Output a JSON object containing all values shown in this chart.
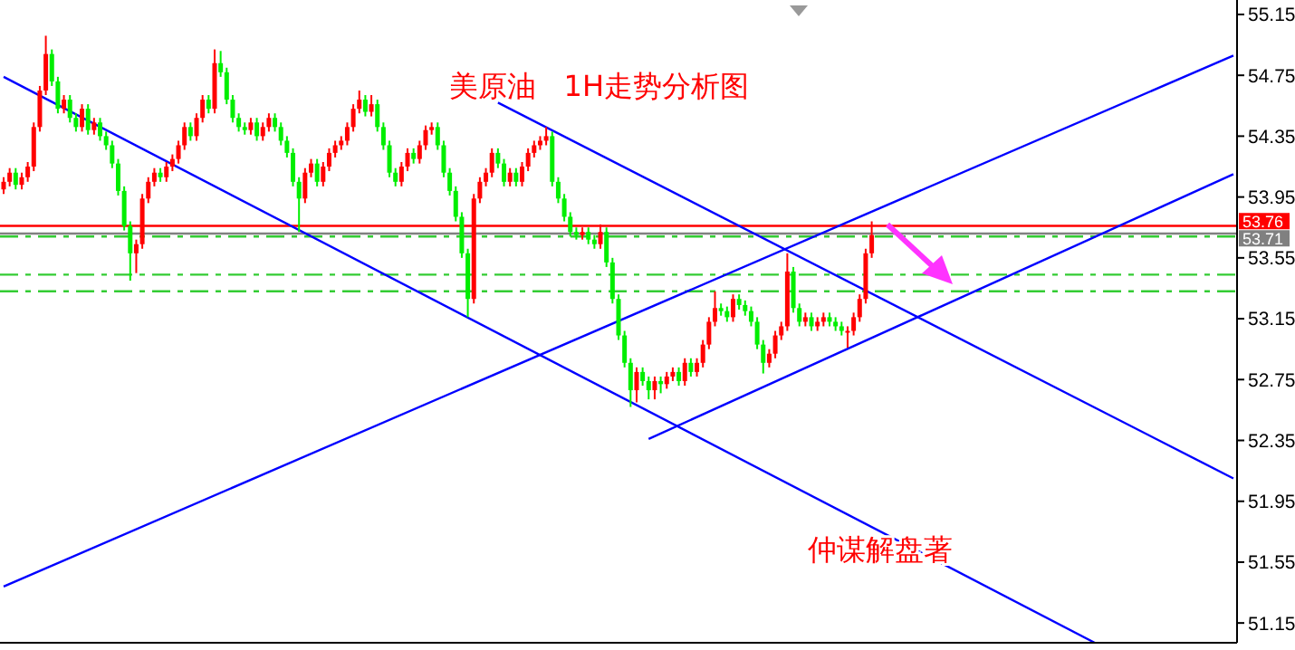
{
  "chart_data": {
    "type": "candlestick",
    "title": "美原油   1H走势分析图",
    "annotations": [
      "仲谋解盘著"
    ],
    "categories": [
      null,
      null,
      null,
      null,
      null,
      null,
      null,
      null,
      null,
      null,
      null,
      null,
      null,
      null,
      null,
      null,
      null,
      null,
      null,
      null,
      null,
      null,
      null,
      null,
      null,
      null,
      null,
      null,
      null,
      null,
      null,
      null,
      null,
      null,
      null,
      null,
      null,
      null,
      null,
      null,
      null,
      null,
      null,
      null,
      null,
      null,
      null,
      null,
      null,
      null,
      null,
      null,
      null,
      null,
      null,
      null,
      null,
      null,
      null,
      null,
      null,
      null,
      null,
      null,
      null,
      null,
      null,
      null,
      null,
      null,
      null,
      null,
      null,
      null,
      null,
      null,
      null,
      null,
      null,
      null,
      null,
      null,
      null,
      null,
      null,
      null,
      null,
      null,
      null,
      null,
      null,
      null,
      null,
      null,
      null,
      null,
      null,
      null,
      null,
      null,
      null,
      null,
      null,
      null,
      null,
      null,
      null,
      null,
      null,
      null,
      null,
      null,
      null,
      null,
      null,
      null,
      null,
      null,
      null,
      null,
      null,
      null,
      null,
      null,
      null,
      null,
      null,
      null,
      null,
      null,
      null,
      null,
      null,
      null,
      null,
      null,
      null,
      null,
      null,
      null,
      null,
      null,
      null,
      null,
      null,
      null,
      null,
      null,
      null,
      null,
      null,
      null,
      null,
      null,
      null,
      null,
      null,
      null,
      null,
      null,
      null,
      null,
      null,
      null,
      null,
      null,
      null,
      null,
      null,
      null,
      null,
      null,
      null,
      null,
      null,
      null,
      null,
      null,
      null,
      null,
      null,
      null,
      null,
      null,
      null,
      null,
      null,
      null,
      null,
      null,
      null,
      null,
      null,
      null,
      null,
      null,
      null,
      null,
      null,
      null,
      null,
      null,
      null,
      null,
      null
    ],
    "ohlc": [
      [
        54.0,
        54.08,
        53.97,
        54.05
      ],
      [
        54.05,
        54.14,
        54.02,
        54.11
      ],
      [
        54.11,
        54.14,
        54.0,
        54.03
      ],
      [
        54.03,
        54.11,
        54.0,
        54.08
      ],
      [
        54.08,
        54.18,
        54.05,
        54.15
      ],
      [
        54.15,
        54.44,
        54.12,
        54.41
      ],
      [
        54.41,
        54.68,
        54.38,
        54.65
      ],
      [
        54.65,
        55.01,
        54.62,
        54.89
      ],
      [
        54.89,
        54.92,
        54.68,
        54.71
      ],
      [
        54.71,
        54.74,
        54.5,
        54.53
      ],
      [
        54.53,
        54.62,
        54.5,
        54.59
      ],
      [
        54.59,
        54.62,
        54.44,
        54.47
      ],
      [
        54.47,
        54.5,
        54.38,
        54.41
      ],
      [
        54.41,
        54.56,
        54.38,
        54.53
      ],
      [
        54.53,
        54.56,
        54.36,
        54.39
      ],
      [
        54.39,
        54.47,
        54.36,
        54.44
      ],
      [
        54.44,
        54.47,
        54.32,
        54.35
      ],
      [
        54.35,
        54.38,
        54.26,
        54.29
      ],
      [
        54.29,
        54.32,
        54.14,
        54.17
      ],
      [
        54.17,
        54.2,
        53.96,
        53.99
      ],
      [
        53.99,
        54.02,
        53.73,
        53.76
      ],
      [
        53.76,
        53.79,
        53.4,
        53.58
      ],
      [
        53.58,
        53.67,
        53.45,
        53.64
      ],
      [
        53.64,
        53.97,
        53.61,
        53.94
      ],
      [
        53.94,
        54.08,
        53.91,
        54.05
      ],
      [
        54.05,
        54.14,
        54.02,
        54.11
      ],
      [
        54.11,
        54.14,
        54.05,
        54.08
      ],
      [
        54.08,
        54.18,
        54.05,
        54.15
      ],
      [
        54.15,
        54.23,
        54.12,
        54.2
      ],
      [
        54.2,
        54.32,
        54.17,
        54.29
      ],
      [
        54.29,
        54.44,
        54.26,
        54.41
      ],
      [
        54.41,
        54.44,
        54.32,
        54.35
      ],
      [
        54.35,
        54.5,
        54.32,
        54.47
      ],
      [
        54.47,
        54.62,
        54.44,
        54.59
      ],
      [
        54.59,
        54.62,
        54.5,
        54.53
      ],
      [
        54.53,
        54.92,
        54.5,
        54.83
      ],
      [
        54.83,
        54.91,
        54.74,
        54.77
      ],
      [
        54.77,
        54.8,
        54.56,
        54.59
      ],
      [
        54.59,
        54.62,
        54.44,
        54.47
      ],
      [
        54.47,
        54.5,
        54.38,
        54.41
      ],
      [
        54.41,
        54.44,
        54.36,
        54.39
      ],
      [
        54.39,
        54.47,
        54.36,
        54.44
      ],
      [
        54.44,
        54.47,
        54.32,
        54.35
      ],
      [
        54.35,
        54.44,
        54.32,
        54.41
      ],
      [
        54.41,
        54.5,
        54.38,
        54.47
      ],
      [
        54.47,
        54.5,
        54.38,
        54.41
      ],
      [
        54.41,
        54.44,
        54.29,
        54.32
      ],
      [
        54.32,
        54.35,
        54.21,
        54.24
      ],
      [
        54.24,
        54.27,
        54.02,
        54.05
      ],
      [
        54.05,
        54.08,
        53.72,
        53.94
      ],
      [
        53.94,
        54.14,
        53.91,
        54.11
      ],
      [
        54.11,
        54.2,
        54.08,
        54.17
      ],
      [
        54.17,
        54.2,
        54.02,
        54.05
      ],
      [
        54.05,
        54.18,
        54.02,
        54.15
      ],
      [
        54.15,
        54.27,
        54.12,
        54.24
      ],
      [
        54.24,
        54.32,
        54.21,
        54.29
      ],
      [
        54.29,
        54.35,
        54.26,
        54.32
      ],
      [
        54.32,
        54.44,
        54.29,
        54.41
      ],
      [
        54.41,
        54.56,
        54.38,
        54.53
      ],
      [
        54.53,
        54.65,
        54.5,
        54.59
      ],
      [
        54.59,
        54.62,
        54.48,
        54.51
      ],
      [
        54.51,
        54.62,
        54.48,
        54.56
      ],
      [
        54.56,
        54.59,
        54.38,
        54.41
      ],
      [
        54.41,
        54.44,
        54.26,
        54.29
      ],
      [
        54.29,
        54.32,
        54.08,
        54.11
      ],
      [
        54.11,
        54.14,
        54.02,
        54.05
      ],
      [
        54.05,
        54.18,
        54.02,
        54.15
      ],
      [
        54.15,
        54.27,
        54.12,
        54.24
      ],
      [
        54.24,
        54.27,
        54.17,
        54.2
      ],
      [
        54.2,
        54.32,
        54.17,
        54.29
      ],
      [
        54.29,
        54.42,
        54.26,
        54.39
      ],
      [
        54.39,
        54.44,
        54.36,
        54.41
      ],
      [
        54.41,
        54.44,
        54.26,
        54.29
      ],
      [
        54.29,
        54.32,
        54.08,
        54.11
      ],
      [
        54.11,
        54.14,
        53.96,
        53.99
      ],
      [
        53.99,
        54.02,
        53.79,
        53.82
      ],
      [
        53.82,
        53.85,
        53.55,
        53.58
      ],
      [
        53.58,
        53.61,
        53.16,
        53.28
      ],
      [
        53.28,
        53.97,
        53.25,
        53.94
      ],
      [
        53.94,
        54.08,
        53.91,
        54.05
      ],
      [
        54.05,
        54.14,
        54.02,
        54.11
      ],
      [
        54.11,
        54.27,
        54.08,
        54.24
      ],
      [
        54.24,
        54.27,
        54.14,
        54.17
      ],
      [
        54.17,
        54.2,
        54.02,
        54.05
      ],
      [
        54.05,
        54.14,
        54.02,
        54.11
      ],
      [
        54.11,
        54.14,
        54.02,
        54.05
      ],
      [
        54.05,
        54.18,
        54.02,
        54.15
      ],
      [
        54.15,
        54.27,
        54.12,
        54.24
      ],
      [
        54.24,
        54.32,
        54.21,
        54.29
      ],
      [
        54.29,
        54.35,
        54.26,
        54.32
      ],
      [
        54.32,
        54.41,
        54.29,
        54.35
      ],
      [
        54.35,
        54.38,
        54.02,
        54.05
      ],
      [
        54.05,
        54.08,
        53.91,
        53.94
      ],
      [
        53.94,
        53.97,
        53.79,
        53.82
      ],
      [
        53.82,
        53.85,
        53.69,
        53.72
      ],
      [
        53.72,
        53.75,
        53.67,
        53.7
      ],
      [
        53.7,
        53.75,
        53.67,
        53.72
      ],
      [
        53.72,
        53.75,
        53.64,
        53.67
      ],
      [
        53.67,
        53.7,
        53.61,
        53.64
      ],
      [
        53.64,
        53.77,
        53.61,
        53.72
      ],
      [
        53.72,
        53.75,
        53.49,
        53.52
      ],
      [
        53.52,
        53.55,
        53.25,
        53.28
      ],
      [
        53.28,
        53.31,
        53.01,
        53.04
      ],
      [
        53.04,
        53.07,
        52.83,
        52.86
      ],
      [
        52.86,
        52.89,
        52.57,
        52.68
      ],
      [
        52.68,
        52.83,
        52.6,
        52.8
      ],
      [
        52.8,
        52.83,
        52.71,
        52.74
      ],
      [
        52.74,
        52.77,
        52.62,
        52.68
      ],
      [
        52.68,
        52.77,
        52.62,
        52.74
      ],
      [
        52.74,
        52.77,
        52.66,
        52.72
      ],
      [
        52.72,
        52.8,
        52.69,
        52.77
      ],
      [
        52.77,
        52.83,
        52.74,
        52.8
      ],
      [
        52.8,
        52.83,
        52.71,
        52.74
      ],
      [
        52.74,
        52.89,
        52.71,
        52.86
      ],
      [
        52.86,
        52.89,
        52.77,
        52.8
      ],
      [
        52.8,
        52.89,
        52.77,
        52.86
      ],
      [
        52.86,
        53.01,
        52.83,
        52.98
      ],
      [
        52.98,
        53.16,
        52.95,
        53.13
      ],
      [
        53.13,
        53.33,
        53.1,
        53.22
      ],
      [
        53.22,
        53.25,
        53.17,
        53.2
      ],
      [
        53.2,
        53.23,
        53.13,
        53.16
      ],
      [
        53.16,
        53.31,
        53.13,
        53.28
      ],
      [
        53.28,
        53.31,
        53.21,
        53.24
      ],
      [
        53.24,
        53.27,
        53.17,
        53.2
      ],
      [
        53.2,
        53.23,
        53.1,
        53.13
      ],
      [
        53.13,
        53.16,
        52.95,
        52.98
      ],
      [
        52.98,
        53.01,
        52.79,
        52.86
      ],
      [
        52.86,
        52.95,
        52.83,
        52.92
      ],
      [
        52.92,
        53.07,
        52.89,
        53.04
      ],
      [
        53.04,
        53.13,
        53.01,
        53.1
      ],
      [
        53.1,
        53.58,
        53.07,
        53.46
      ],
      [
        53.46,
        53.49,
        53.19,
        53.22
      ],
      [
        53.22,
        53.25,
        53.1,
        53.13
      ],
      [
        53.13,
        53.19,
        53.1,
        53.16
      ],
      [
        53.16,
        53.19,
        53.07,
        53.1
      ],
      [
        53.1,
        53.16,
        53.07,
        53.13
      ],
      [
        53.13,
        53.19,
        53.1,
        53.16
      ],
      [
        53.16,
        53.19,
        53.1,
        53.13
      ],
      [
        53.13,
        53.16,
        53.07,
        53.1
      ],
      [
        53.1,
        53.13,
        53.04,
        53.07
      ],
      [
        53.07,
        53.1,
        52.96,
        53.07
      ],
      [
        53.07,
        53.19,
        53.04,
        53.16
      ],
      [
        53.16,
        53.31,
        53.13,
        53.28
      ],
      [
        53.28,
        53.61,
        53.25,
        53.58
      ],
      [
        53.58,
        53.79,
        53.55,
        53.7
      ],
      null,
      null,
      null,
      null,
      null,
      null,
      null,
      null,
      null,
      null,
      null,
      null,
      null,
      null,
      null,
      null,
      null,
      null,
      null,
      null,
      null,
      null,
      null,
      null,
      null,
      null,
      null,
      null,
      null,
      null,
      null,
      null,
      null,
      null,
      null,
      null,
      null,
      null,
      null,
      null,
      null,
      null,
      null,
      null,
      null,
      null,
      null,
      null,
      null,
      null,
      null,
      null,
      null,
      null,
      null,
      null,
      null,
      null,
      null,
      null
    ],
    "colors": [
      "#ff0000",
      "#ff0000",
      "#00ee00",
      "#ff0000",
      "#ff0000",
      "#ff0000",
      "#ff0000",
      "#ff0000",
      "#00ee00",
      "#00ee00",
      "#ff0000",
      "#00ee00",
      "#00ee00",
      "#ff0000",
      "#00ee00",
      "#ff0000",
      "#00ee00",
      "#00ee00",
      "#00ee00",
      "#00ee00",
      "#00ee00",
      "#00ee00",
      "#ff0000",
      "#ff0000",
      "#ff0000",
      "#ff0000",
      "#00ee00",
      "#ff0000",
      "#ff0000",
      "#ff0000",
      "#ff0000",
      "#00ee00",
      "#ff0000",
      "#ff0000",
      "#00ee00",
      "#ff0000",
      "#00ee00",
      "#00ee00",
      "#00ee00",
      "#00ee00",
      "#00ee00",
      "#ff0000",
      "#00ee00",
      "#ff0000",
      "#ff0000",
      "#00ee00",
      "#00ee00",
      "#00ee00",
      "#00ee00",
      "#00ee00",
      "#ff0000",
      "#ff0000",
      "#00ee00",
      "#ff0000",
      "#ff0000",
      "#ff0000",
      "#ff0000",
      "#ff0000",
      "#ff0000",
      "#ff0000",
      "#00ee00",
      "#ff0000",
      "#00ee00",
      "#00ee00",
      "#00ee00",
      "#00ee00",
      "#ff0000",
      "#ff0000",
      "#00ee00",
      "#ff0000",
      "#ff0000",
      "#ff0000",
      "#00ee00",
      "#00ee00",
      "#00ee00",
      "#00ee00",
      "#00ee00",
      "#00ee00",
      "#ff0000",
      "#ff0000",
      "#ff0000",
      "#ff0000",
      "#00ee00",
      "#00ee00",
      "#ff0000",
      "#00ee00",
      "#ff0000",
      "#ff0000",
      "#ff0000",
      "#ff0000",
      "#ff0000",
      "#00ee00",
      "#00ee00",
      "#00ee00",
      "#00ee00",
      "#00ee00",
      "#ff0000",
      "#00ee00",
      "#00ee00",
      "#ff0000",
      "#00ee00",
      "#00ee00",
      "#00ee00",
      "#00ee00",
      "#00ee00",
      "#ff0000",
      "#00ee00",
      "#00ee00",
      "#ff0000",
      "#00ee00",
      "#ff0000",
      "#ff0000",
      "#00ee00",
      "#ff0000",
      "#00ee00",
      "#ff0000",
      "#ff0000",
      "#ff0000",
      "#ff0000",
      "#00ee00",
      "#00ee00",
      "#ff0000",
      "#00ee00",
      "#00ee00",
      "#00ee00",
      "#00ee00",
      "#00ee00",
      "#ff0000",
      "#ff0000",
      "#ff0000",
      "#ff0000",
      "#00ee00",
      "#00ee00",
      "#ff0000",
      "#00ee00",
      "#ff0000",
      "#ff0000",
      "#00ee00",
      "#00ee00",
      "#00ee00",
      "#ff0000",
      "#ff0000",
      "#ff0000",
      "#ff0000",
      "#ff0000",
      null,
      null,
      null,
      null,
      null,
      null,
      null,
      null,
      null,
      null,
      null,
      null,
      null,
      null,
      null,
      null,
      null,
      null,
      null,
      null,
      null,
      null,
      null,
      null,
      null,
      null,
      null,
      null,
      null,
      null,
      null,
      null,
      null,
      null,
      null,
      null,
      null,
      null,
      null,
      null,
      null,
      null,
      null,
      null,
      null,
      null,
      null,
      null,
      null,
      null,
      null,
      null,
      null,
      null,
      null,
      null,
      null,
      null,
      null,
      null
    ],
    "series": [
      {
        "type": "line",
        "color": "#0000ff",
        "values": [
          54.74,
          null,
          null,
          null,
          null,
          null,
          null,
          null,
          null,
          null,
          null,
          null,
          null,
          null,
          null,
          null,
          null,
          null,
          null,
          null,
          null,
          null,
          null,
          null,
          null,
          null,
          null,
          null,
          null,
          null,
          null,
          null,
          null,
          null,
          null,
          null,
          null,
          null,
          null,
          null,
          null,
          null,
          null,
          null,
          null,
          null,
          null,
          null,
          null,
          null,
          null,
          null,
          null,
          null,
          null,
          null,
          null,
          null,
          null,
          null,
          null,
          null,
          null,
          null,
          null,
          null,
          null,
          null,
          null,
          null,
          null,
          null,
          null,
          null,
          null,
          null,
          null,
          null,
          null,
          null,
          null,
          null,
          null,
          null,
          null,
          null,
          null,
          null,
          null,
          null,
          null,
          null,
          null,
          null,
          null,
          null,
          null,
          null,
          null,
          null,
          null,
          null,
          null,
          null,
          null,
          null,
          null,
          null,
          null,
          null,
          null,
          null,
          null,
          null,
          null,
          null,
          null,
          null,
          null,
          null,
          null,
          null,
          null,
          null,
          null,
          null,
          null,
          null,
          null,
          null,
          null,
          null,
          null,
          null,
          null,
          null,
          null,
          null,
          null,
          null,
          null,
          null,
          null,
          null,
          null,
          null,
          null,
          null,
          null,
          null,
          null,
          null,
          null,
          null,
          null,
          null,
          null,
          null,
          null,
          null,
          null,
          null,
          null,
          null,
          null,
          null,
          null,
          null,
          null,
          null,
          null,
          null,
          null,
          null,
          null,
          null,
          null,
          null,
          null,
          null,
          null,
          51.02,
          null,
          null,
          null,
          null,
          null,
          null,
          null,
          null,
          null,
          null,
          null,
          null,
          null,
          null,
          null,
          null,
          null,
          null,
          null,
          null,
          null,
          null,
          null
        ]
      },
      {
        "type": "line",
        "color": "#0000ff",
        "values": [
          null,
          null,
          null,
          null,
          null,
          null,
          null,
          null,
          null,
          null,
          null,
          null,
          null,
          null,
          null,
          null,
          null,
          null,
          null,
          null,
          null,
          null,
          null,
          null,
          null,
          null,
          null,
          null,
          null,
          null,
          null,
          null,
          null,
          null,
          null,
          null,
          null,
          null,
          null,
          null,
          null,
          null,
          null,
          null,
          null,
          null,
          null,
          null,
          null,
          null,
          null,
          null,
          null,
          null,
          null,
          null,
          null,
          null,
          null,
          null,
          null,
          null,
          null,
          null,
          null,
          null,
          null,
          null,
          null,
          null,
          null,
          null,
          null,
          null,
          null,
          null,
          null,
          null,
          null,
          null,
          null,
          null,
          54.57,
          null,
          null,
          null,
          null,
          null,
          null,
          null,
          null,
          null,
          null,
          null,
          null,
          null,
          null,
          null,
          null,
          null,
          null,
          null,
          null,
          null,
          null,
          null,
          null,
          null,
          null,
          null,
          null,
          null,
          null,
          null,
          null,
          null,
          null,
          null,
          null,
          null,
          null,
          null,
          null,
          null,
          null,
          null,
          null,
          null,
          null,
          null,
          null,
          null,
          null,
          null,
          null,
          null,
          null,
          null,
          null,
          null,
          null,
          null,
          null,
          null,
          null,
          null,
          null,
          null,
          null,
          null,
          null,
          null,
          null,
          null,
          null,
          null,
          null,
          null,
          null,
          null,
          null,
          null,
          null,
          null,
          null,
          null,
          null,
          null,
          null,
          null,
          null,
          null,
          null,
          null,
          null,
          null,
          null,
          null,
          null,
          null,
          null,
          null,
          null,
          null,
          null,
          null,
          null,
          null,
          null,
          null,
          null,
          null,
          null,
          null,
          null,
          null,
          null,
          null,
          null,
          null,
          null,
          null,
          null,
          null,
          52.1
        ]
      },
      {
        "type": "line",
        "color": "#0000ff",
        "values": [
          51.39,
          null,
          null,
          null,
          null,
          null,
          null,
          null,
          null,
          null,
          null,
          null,
          null,
          null,
          null,
          null,
          null,
          null,
          null,
          null,
          null,
          null,
          null,
          null,
          null,
          null,
          null,
          null,
          null,
          null,
          null,
          null,
          null,
          null,
          null,
          null,
          null,
          null,
          null,
          null,
          null,
          null,
          null,
          null,
          null,
          null,
          null,
          null,
          null,
          null,
          null,
          null,
          null,
          null,
          null,
          null,
          null,
          null,
          null,
          null,
          null,
          null,
          null,
          null,
          null,
          null,
          null,
          null,
          null,
          null,
          null,
          null,
          null,
          null,
          null,
          null,
          null,
          null,
          null,
          null,
          null,
          null,
          null,
          null,
          null,
          null,
          null,
          null,
          null,
          null,
          null,
          null,
          null,
          null,
          null,
          null,
          null,
          null,
          null,
          null,
          null,
          null,
          null,
          null,
          null,
          null,
          null,
          null,
          null,
          null,
          null,
          null,
          null,
          null,
          null,
          null,
          null,
          null,
          null,
          null,
          null,
          null,
          null,
          null,
          null,
          null,
          null,
          null,
          null,
          null,
          null,
          null,
          null,
          null,
          null,
          null,
          null,
          null,
          null,
          null,
          null,
          null,
          null,
          null,
          null,
          null,
          null,
          null,
          null,
          null,
          null,
          null,
          null,
          null,
          null,
          null,
          null,
          null,
          null,
          null,
          null,
          null,
          null,
          null,
          null,
          null,
          null,
          null,
          null,
          null,
          null,
          null,
          null,
          null,
          null,
          null,
          null,
          null,
          null,
          null,
          null,
          null,
          null,
          null,
          null,
          null,
          null,
          null,
          null,
          null,
          null,
          null,
          null,
          null,
          null,
          null,
          null,
          null,
          null,
          null,
          null,
          null,
          null,
          null,
          54.88
        ]
      },
      {
        "type": "line",
        "color": "#0000ff",
        "values": [
          null,
          null,
          null,
          null,
          null,
          null,
          null,
          null,
          null,
          null,
          null,
          null,
          null,
          null,
          null,
          null,
          null,
          null,
          null,
          null,
          null,
          null,
          null,
          null,
          null,
          null,
          null,
          null,
          null,
          null,
          null,
          null,
          null,
          null,
          null,
          null,
          null,
          null,
          null,
          null,
          null,
          null,
          null,
          null,
          null,
          null,
          null,
          null,
          null,
          null,
          null,
          null,
          null,
          null,
          null,
          null,
          null,
          null,
          null,
          null,
          null,
          null,
          null,
          null,
          null,
          null,
          null,
          null,
          null,
          null,
          null,
          null,
          null,
          null,
          null,
          null,
          null,
          null,
          null,
          null,
          null,
          null,
          null,
          null,
          null,
          null,
          null,
          null,
          null,
          null,
          null,
          null,
          null,
          null,
          null,
          null,
          null,
          null,
          null,
          null,
          null,
          null,
          null,
          null,
          null,
          null,
          null,
          52.36,
          null,
          null,
          null,
          null,
          null,
          null,
          null,
          null,
          null,
          null,
          null,
          null,
          null,
          null,
          null,
          null,
          null,
          null,
          null,
          null,
          null,
          null,
          null,
          null,
          null,
          null,
          null,
          null,
          null,
          null,
          null,
          null,
          null,
          null,
          null,
          null,
          null,
          null,
          null,
          null,
          null,
          null,
          null,
          null,
          null,
          null,
          null,
          null,
          null,
          null,
          null,
          null,
          null,
          null,
          null,
          null,
          null,
          null,
          null,
          null,
          null,
          null,
          null,
          null,
          null,
          null,
          null,
          null,
          null,
          null,
          null,
          null,
          null,
          null,
          null,
          null,
          null,
          null,
          null,
          null,
          null,
          null,
          null,
          null,
          null,
          null,
          null,
          null,
          null,
          null,
          null,
          null,
          null,
          null,
          null,
          null,
          54.1
        ]
      }
    ],
    "ref_lines": [
      {
        "axis": "y",
        "value": 53.76,
        "label": "53.76",
        "color": "#ff0000",
        "line_style": "solid"
      },
      {
        "axis": "y",
        "value": 53.71,
        "label": "53.71",
        "color": "#808080",
        "line_style": "solid"
      },
      {
        "axis": "y",
        "value": 53.69,
        "color": "#33cc33",
        "line_style": "dashed"
      },
      {
        "axis": "y",
        "value": 53.44,
        "color": "#33cc33",
        "line_style": "dashed"
      },
      {
        "axis": "y",
        "value": 53.33,
        "color": "#33cc33",
        "line_style": "dashed"
      }
    ],
    "ylim": [
      51.02,
      55.245
    ],
    "yticks": [
      51.15,
      51.55,
      51.95,
      52.35,
      52.75,
      53.15,
      53.55,
      53.95,
      54.35,
      54.75,
      55.15
    ],
    "tick_labels": "y",
    "grid": false,
    "marker": "none"
  }
}
